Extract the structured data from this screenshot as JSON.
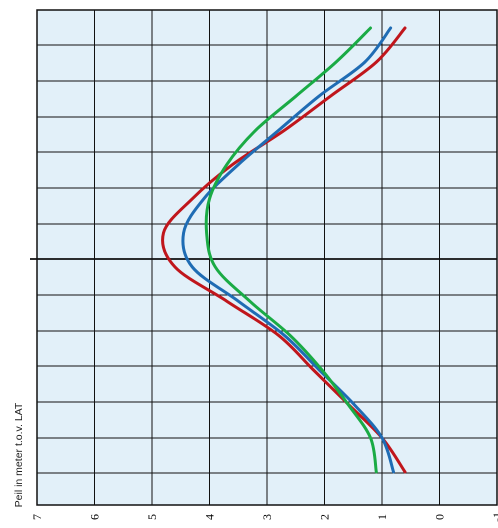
{
  "chart_data": {
    "type": "line",
    "title": "",
    "ylabel": "Peil in meter t.o.v. LAT",
    "value_axis": {
      "ticks": [
        "7",
        "6",
        "5",
        "4",
        "3",
        "2",
        "1",
        "0",
        "-1"
      ],
      "range": [
        7,
        -1
      ]
    },
    "grid": true,
    "series": [
      {
        "color": "#c0161c",
        "values": [
          [
            0.6,
            0.0
          ],
          [
            1.1,
            0.5
          ],
          [
            1.9,
            1.0
          ],
          [
            2.7,
            1.5
          ],
          [
            3.6,
            2.0
          ],
          [
            4.3,
            2.5
          ],
          [
            4.8,
            3.0
          ],
          [
            4.6,
            3.5
          ],
          [
            3.7,
            4.0
          ],
          [
            2.8,
            4.5
          ],
          [
            2.2,
            5.0
          ],
          [
            1.6,
            5.5
          ],
          [
            1.0,
            6.0
          ],
          [
            0.6,
            6.5
          ]
        ]
      },
      {
        "color": "#1f6cb4",
        "values": [
          [
            0.85,
            0.0
          ],
          [
            1.3,
            0.5
          ],
          [
            2.1,
            1.0
          ],
          [
            2.8,
            1.5
          ],
          [
            3.5,
            2.0
          ],
          [
            4.1,
            2.5
          ],
          [
            4.45,
            3.0
          ],
          [
            4.3,
            3.5
          ],
          [
            3.5,
            4.0
          ],
          [
            2.7,
            4.5
          ],
          [
            2.1,
            5.0
          ],
          [
            1.5,
            5.5
          ],
          [
            1.0,
            6.0
          ],
          [
            0.8,
            6.5
          ]
        ]
      },
      {
        "color": "#1aab45",
        "values": [
          [
            1.2,
            0.0
          ],
          [
            1.8,
            0.5
          ],
          [
            2.5,
            1.0
          ],
          [
            3.2,
            1.5
          ],
          [
            3.7,
            2.0
          ],
          [
            4.0,
            2.5
          ],
          [
            4.05,
            3.0
          ],
          [
            3.9,
            3.5
          ],
          [
            3.3,
            4.0
          ],
          [
            2.6,
            4.5
          ],
          [
            2.05,
            5.0
          ],
          [
            1.6,
            5.5
          ],
          [
            1.2,
            6.0
          ],
          [
            1.1,
            6.5
          ]
        ]
      }
    ]
  }
}
